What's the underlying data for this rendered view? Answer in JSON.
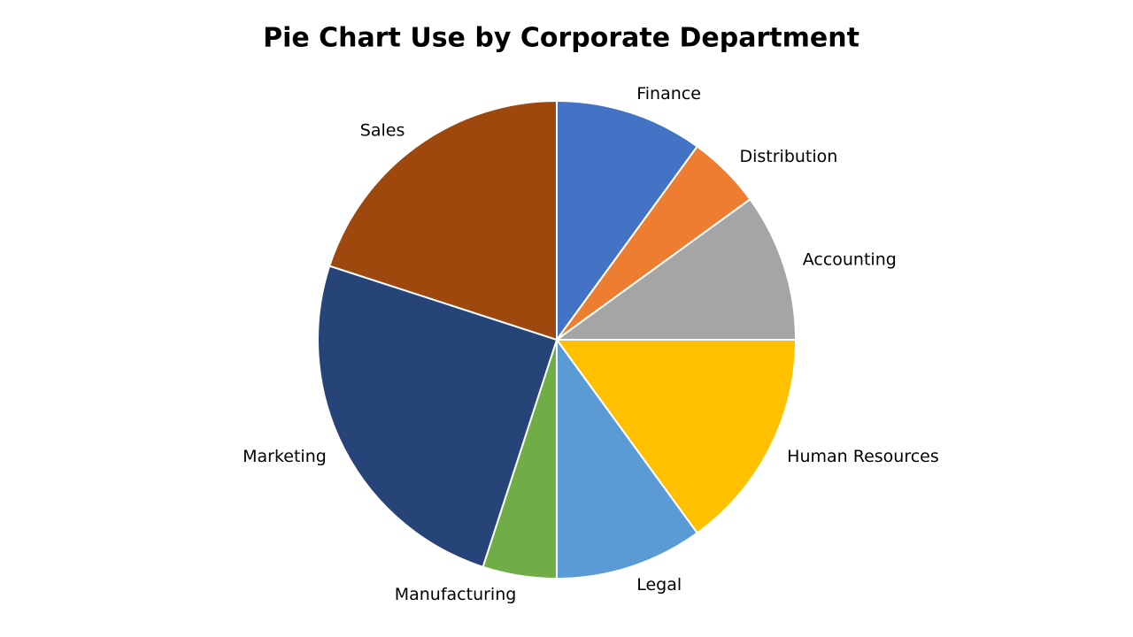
{
  "chart_data": {
    "type": "pie",
    "title": "Pie Chart Use by Corporate Department",
    "categories": [
      "Finance",
      "Distribution",
      "Accounting",
      "Human Resources",
      "Legal",
      "Manufacturing",
      "Marketing",
      "Sales"
    ],
    "values": [
      10,
      5,
      10,
      15,
      10,
      5,
      25,
      20
    ],
    "colors": [
      "#4472c4",
      "#ed7d31",
      "#a5a5a5",
      "#ffc000",
      "#5b9bd5",
      "#70ad47",
      "#264478",
      "#9e480e"
    ]
  }
}
